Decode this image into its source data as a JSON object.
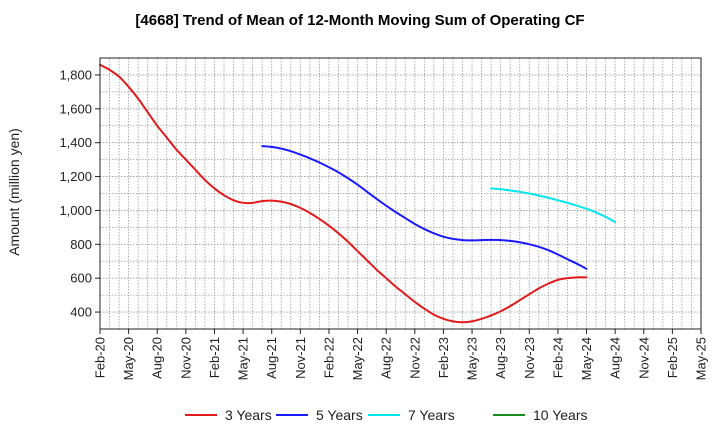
{
  "chart_data": {
    "type": "line",
    "title": "[4668]  Trend of Mean of 12-Month Moving Sum of Operating CF",
    "xlabel": "",
    "ylabel": "Amount (million yen)",
    "ylim": [
      300,
      1900
    ],
    "yticks": [
      400,
      600,
      800,
      1000,
      1200,
      1400,
      1600,
      1800
    ],
    "ytick_labels": [
      "400",
      "600",
      "800",
      "1,000",
      "1,200",
      "1,400",
      "1,600",
      "1,800"
    ],
    "x_start": "Feb-20",
    "x_months": 63,
    "xtick_labels": [
      "Feb-20",
      "May-20",
      "Aug-20",
      "Nov-20",
      "Feb-21",
      "May-21",
      "Aug-21",
      "Nov-21",
      "Feb-22",
      "May-22",
      "Aug-22",
      "Nov-22",
      "Feb-23",
      "May-23",
      "Aug-23",
      "Nov-23",
      "Feb-24",
      "May-24",
      "Aug-24",
      "Nov-24",
      "Feb-25",
      "May-25"
    ],
    "grid": true,
    "legend_position": "bottom",
    "series": [
      {
        "name": "3 Years",
        "color": "#e31a1c",
        "start": "Feb-20",
        "values": [
          1860,
          1830,
          1790,
          1730,
          1660,
          1580,
          1500,
          1430,
          1360,
          1300,
          1240,
          1180,
          1130,
          1090,
          1060,
          1045,
          1045,
          1055,
          1058,
          1052,
          1038,
          1015,
          985,
          950,
          910,
          865,
          815,
          760,
          705,
          650,
          600,
          550,
          505,
          460,
          420,
          385,
          360,
          345,
          340,
          345,
          360,
          380,
          405,
          435,
          470,
          505,
          540,
          568,
          590,
          600,
          605,
          605
        ]
      },
      {
        "name": "5 Years",
        "color": "#1a1aff",
        "start": "Jul-21",
        "values": [
          1380,
          1375,
          1365,
          1350,
          1330,
          1308,
          1283,
          1255,
          1225,
          1190,
          1152,
          1110,
          1068,
          1028,
          990,
          955,
          920,
          890,
          865,
          845,
          832,
          825,
          823,
          825,
          826,
          825,
          820,
          812,
          800,
          785,
          765,
          740,
          712,
          685,
          655
        ]
      },
      {
        "name": "7 Years",
        "color": "#00e5ee",
        "start": "Jul-23",
        "values": [
          1130,
          1125,
          1118,
          1110,
          1100,
          1088,
          1075,
          1060,
          1045,
          1028,
          1010,
          988,
          962,
          932
        ]
      },
      {
        "name": "10 Years",
        "color": "#1a8a1a",
        "start": "",
        "values": []
      }
    ]
  }
}
